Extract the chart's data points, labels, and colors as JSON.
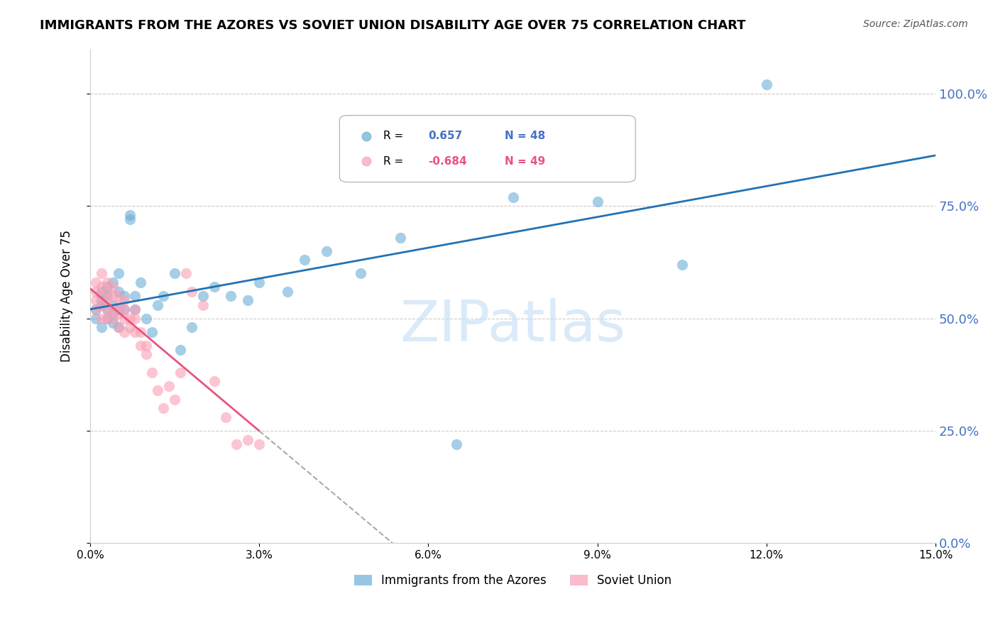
{
  "title": "IMMIGRANTS FROM THE AZORES VS SOVIET UNION DISABILITY AGE OVER 75 CORRELATION CHART",
  "source": "Source: ZipAtlas.com",
  "ylabel_left": "Disability Age Over 75",
  "x_min": 0.0,
  "x_max": 0.15,
  "y_min": 0.0,
  "y_max": 1.1,
  "yticks": [
    0.0,
    0.25,
    0.5,
    0.75,
    1.0
  ],
  "xticks": [
    0.0,
    0.03,
    0.06,
    0.09,
    0.12,
    0.15
  ],
  "xtick_labels": [
    "0.0%",
    "3.0%",
    "6.0%",
    "9.0%",
    "12.0%",
    "15.0%"
  ],
  "ytick_labels_right": [
    "0.0%",
    "25.0%",
    "50.0%",
    "75.0%",
    "100.0%"
  ],
  "legend_blue_r_val": "0.657",
  "legend_blue_n": "N = 48",
  "legend_pink_r_val": "-0.684",
  "legend_pink_n": "N = 49",
  "blue_color": "#6baed6",
  "pink_color": "#fa9fb5",
  "blue_line_color": "#2171b5",
  "pink_line_color": "#e75480",
  "blue_label": "Immigrants from the Azores",
  "pink_label": "Soviet Union",
  "watermark": "ZIPatlas",
  "azores_x": [
    0.001,
    0.001,
    0.002,
    0.002,
    0.002,
    0.002,
    0.003,
    0.003,
    0.003,
    0.003,
    0.004,
    0.004,
    0.004,
    0.004,
    0.005,
    0.005,
    0.005,
    0.005,
    0.006,
    0.006,
    0.007,
    0.007,
    0.008,
    0.008,
    0.009,
    0.01,
    0.011,
    0.012,
    0.013,
    0.015,
    0.016,
    0.018,
    0.02,
    0.022,
    0.025,
    0.028,
    0.03,
    0.035,
    0.038,
    0.042,
    0.048,
    0.055,
    0.062,
    0.065,
    0.075,
    0.09,
    0.105,
    0.12
  ],
  "azores_y": [
    0.5,
    0.52,
    0.48,
    0.53,
    0.54,
    0.56,
    0.5,
    0.52,
    0.55,
    0.57,
    0.49,
    0.51,
    0.53,
    0.58,
    0.48,
    0.52,
    0.56,
    0.6,
    0.52,
    0.55,
    0.72,
    0.73,
    0.52,
    0.55,
    0.58,
    0.5,
    0.47,
    0.53,
    0.55,
    0.6,
    0.43,
    0.48,
    0.55,
    0.57,
    0.55,
    0.54,
    0.58,
    0.56,
    0.63,
    0.65,
    0.6,
    0.68,
    0.82,
    0.22,
    0.77,
    0.76,
    0.62,
    1.02
  ],
  "soviet_x": [
    0.001,
    0.001,
    0.001,
    0.001,
    0.002,
    0.002,
    0.002,
    0.002,
    0.002,
    0.003,
    0.003,
    0.003,
    0.003,
    0.003,
    0.004,
    0.004,
    0.004,
    0.004,
    0.005,
    0.005,
    0.005,
    0.005,
    0.006,
    0.006,
    0.006,
    0.006,
    0.007,
    0.007,
    0.008,
    0.008,
    0.008,
    0.009,
    0.009,
    0.01,
    0.01,
    0.011,
    0.012,
    0.013,
    0.014,
    0.015,
    0.016,
    0.017,
    0.018,
    0.02,
    0.022,
    0.024,
    0.026,
    0.028,
    0.03
  ],
  "soviet_y": [
    0.58,
    0.56,
    0.54,
    0.52,
    0.6,
    0.57,
    0.55,
    0.53,
    0.5,
    0.58,
    0.56,
    0.54,
    0.52,
    0.5,
    0.57,
    0.55,
    0.52,
    0.5,
    0.55,
    0.53,
    0.51,
    0.48,
    0.54,
    0.52,
    0.5,
    0.47,
    0.5,
    0.48,
    0.52,
    0.5,
    0.47,
    0.47,
    0.44,
    0.44,
    0.42,
    0.38,
    0.34,
    0.3,
    0.35,
    0.32,
    0.38,
    0.6,
    0.56,
    0.53,
    0.36,
    0.28,
    0.22,
    0.23,
    0.22
  ]
}
